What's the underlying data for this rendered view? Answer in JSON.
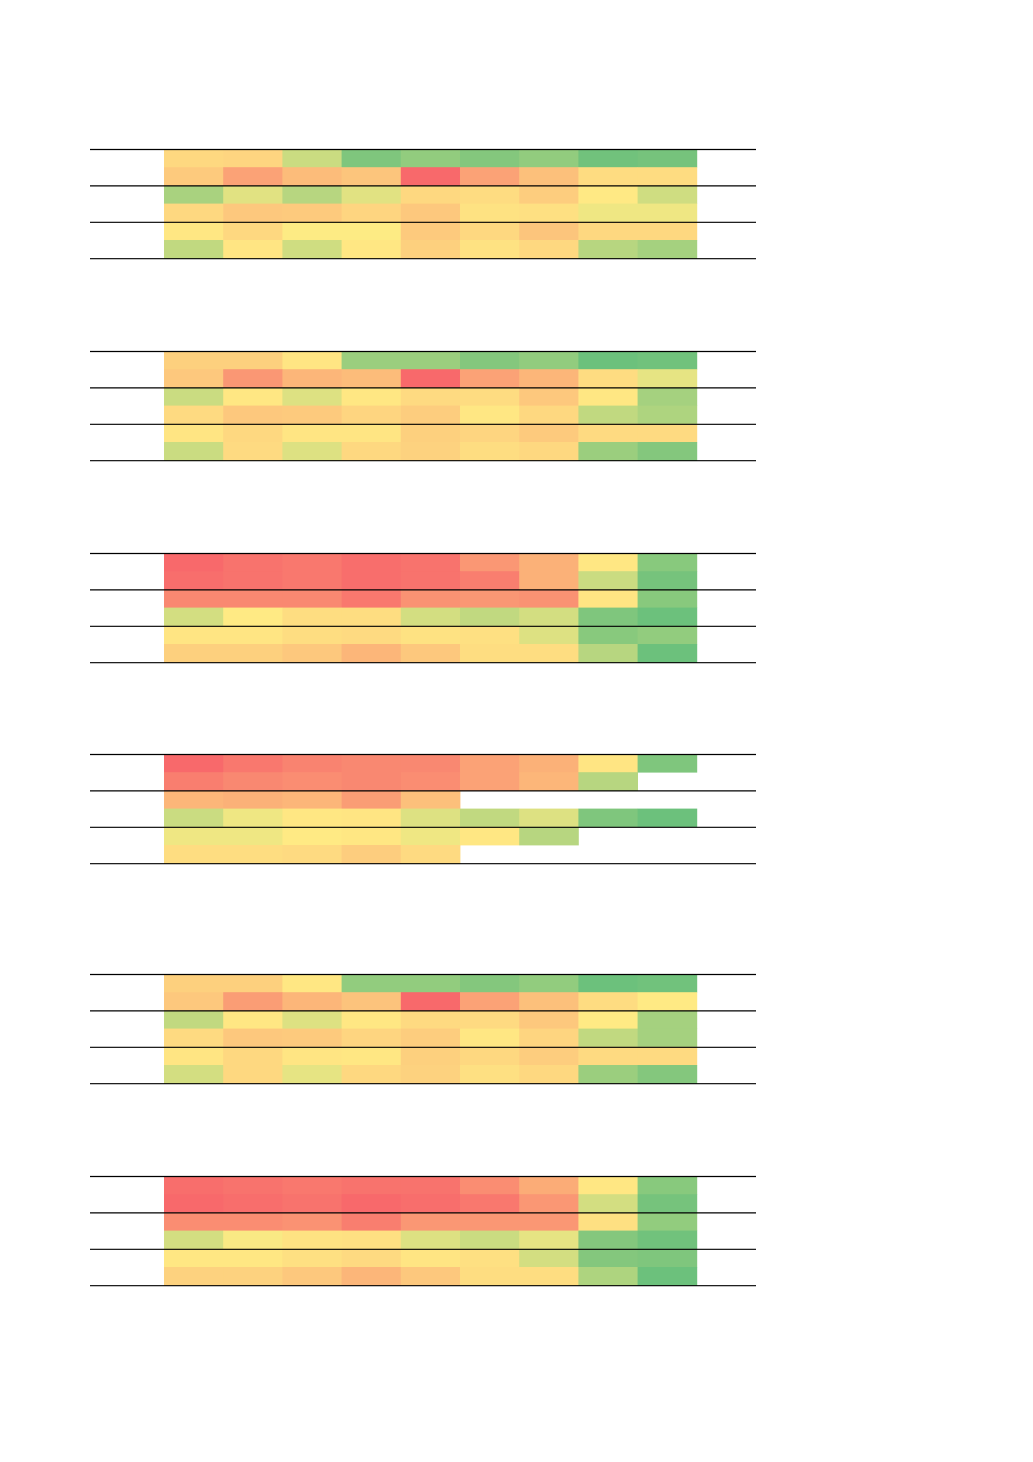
{
  "chart_data": [
    {
      "type": "heatmap",
      "color_scale": [
        "#f8696b",
        "#fcbf7b",
        "#ffeb84",
        "#63be7b"
      ],
      "values": [
        [
          0.52,
          0.5,
          0.78,
          0.94,
          0.9,
          0.93,
          0.9,
          0.97,
          0.96
        ],
        [
          0.42,
          0.22,
          0.32,
          0.38,
          0.0,
          0.22,
          0.34,
          0.55,
          0.55
        ],
        [
          0.85,
          0.73,
          0.82,
          0.73,
          0.52,
          0.55,
          0.44,
          0.65,
          0.77
        ],
        [
          0.52,
          0.4,
          0.42,
          0.5,
          0.4,
          0.6,
          0.58,
          0.7,
          0.7
        ],
        [
          0.64,
          0.52,
          0.67,
          0.67,
          0.42,
          0.52,
          0.38,
          0.52,
          0.52
        ],
        [
          0.8,
          0.62,
          0.77,
          0.64,
          0.46,
          0.6,
          0.52,
          0.82,
          0.86
        ]
      ]
    },
    {
      "type": "heatmap",
      "color_scale": [
        "#f8696b",
        "#fcbf7b",
        "#ffeb84",
        "#63be7b"
      ],
      "values": [
        [
          0.46,
          0.46,
          0.62,
          0.88,
          0.88,
          0.93,
          0.9,
          0.98,
          0.97
        ],
        [
          0.4,
          0.18,
          0.3,
          0.32,
          0.0,
          0.22,
          0.3,
          0.55,
          0.72
        ],
        [
          0.78,
          0.64,
          0.74,
          0.64,
          0.54,
          0.55,
          0.4,
          0.64,
          0.86
        ],
        [
          0.54,
          0.4,
          0.42,
          0.5,
          0.44,
          0.64,
          0.52,
          0.8,
          0.84
        ],
        [
          0.62,
          0.52,
          0.62,
          0.62,
          0.46,
          0.5,
          0.42,
          0.54,
          0.54
        ],
        [
          0.78,
          0.54,
          0.74,
          0.52,
          0.48,
          0.56,
          0.52,
          0.88,
          0.93
        ]
      ]
    },
    {
      "type": "heatmap",
      "color_scale": [
        "#f8696b",
        "#fcbf7b",
        "#ffeb84",
        "#63be7b"
      ],
      "values": [
        [
          0.0,
          0.04,
          0.06,
          0.02,
          0.04,
          0.18,
          0.28,
          0.64,
          0.92
        ],
        [
          0.02,
          0.04,
          0.06,
          0.02,
          0.04,
          0.08,
          0.28,
          0.78,
          0.96
        ],
        [
          0.12,
          0.12,
          0.12,
          0.06,
          0.16,
          0.18,
          0.16,
          0.62,
          0.92
        ],
        [
          0.76,
          0.66,
          0.56,
          0.56,
          0.76,
          0.8,
          0.76,
          0.94,
          0.98
        ],
        [
          0.62,
          0.62,
          0.56,
          0.54,
          0.6,
          0.58,
          0.74,
          0.92,
          0.9
        ],
        [
          0.46,
          0.46,
          0.4,
          0.3,
          0.4,
          0.56,
          0.56,
          0.82,
          0.98
        ]
      ]
    },
    {
      "type": "heatmap",
      "color_scale": [
        "#f8696b",
        "#fcbf7b",
        "#ffeb84",
        "#63be7b"
      ],
      "values": [
        [
          0.0,
          0.06,
          0.1,
          0.12,
          0.12,
          0.22,
          0.28,
          0.62,
          0.94
        ],
        [
          0.08,
          0.12,
          0.14,
          0.12,
          0.14,
          0.22,
          0.3,
          0.82,
          null
        ],
        [
          0.3,
          0.28,
          0.3,
          0.2,
          0.34,
          null,
          null,
          null,
          null
        ],
        [
          0.78,
          0.7,
          0.64,
          0.62,
          0.74,
          0.8,
          0.74,
          0.94,
          0.98
        ],
        [
          0.7,
          0.7,
          0.66,
          0.64,
          0.7,
          0.64,
          0.82,
          null,
          null
        ],
        [
          0.56,
          0.56,
          0.54,
          0.44,
          0.54,
          null,
          null,
          null,
          null
        ]
      ]
    },
    {
      "type": "heatmap",
      "color_scale": [
        "#f8696b",
        "#fcbf7b",
        "#ffeb84",
        "#63be7b"
      ],
      "values": [
        [
          0.46,
          0.46,
          0.64,
          0.9,
          0.9,
          0.93,
          0.9,
          0.98,
          0.97
        ],
        [
          0.4,
          0.2,
          0.3,
          0.36,
          0.0,
          0.22,
          0.34,
          0.55,
          0.66
        ],
        [
          0.8,
          0.64,
          0.74,
          0.64,
          0.54,
          0.54,
          0.4,
          0.66,
          0.86
        ],
        [
          0.54,
          0.4,
          0.42,
          0.5,
          0.44,
          0.64,
          0.5,
          0.8,
          0.86
        ],
        [
          0.62,
          0.52,
          0.62,
          0.64,
          0.46,
          0.52,
          0.44,
          0.54,
          0.54
        ],
        [
          0.76,
          0.52,
          0.72,
          0.52,
          0.48,
          0.58,
          0.52,
          0.88,
          0.93
        ]
      ]
    },
    {
      "type": "heatmap",
      "color_scale": [
        "#f8696b",
        "#fcbf7b",
        "#ffeb84",
        "#63be7b"
      ],
      "values": [
        [
          0.02,
          0.04,
          0.06,
          0.04,
          0.04,
          0.14,
          0.26,
          0.64,
          0.92
        ],
        [
          0.0,
          0.02,
          0.04,
          0.0,
          0.02,
          0.06,
          0.18,
          0.76,
          0.96
        ],
        [
          0.14,
          0.14,
          0.16,
          0.08,
          0.18,
          0.18,
          0.18,
          0.58,
          0.9
        ],
        [
          0.76,
          0.68,
          0.6,
          0.58,
          0.74,
          0.78,
          0.72,
          0.93,
          0.97
        ],
        [
          0.64,
          0.64,
          0.58,
          0.54,
          0.62,
          0.58,
          0.76,
          0.93,
          0.94
        ],
        [
          0.48,
          0.48,
          0.4,
          0.3,
          0.4,
          0.56,
          0.56,
          0.84,
          0.98
        ]
      ]
    }
  ]
}
